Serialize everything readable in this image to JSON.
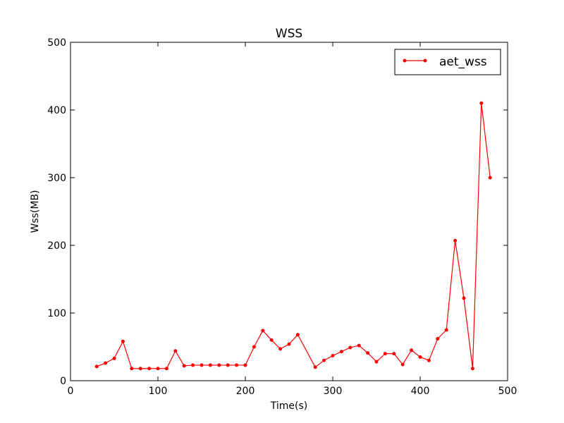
{
  "chart_data": {
    "type": "line",
    "title": "WSS",
    "xlabel": "Time(s)",
    "ylabel": "Wss(MB)",
    "xlim": [
      0,
      500
    ],
    "ylim": [
      0,
      500
    ],
    "xticks": [
      0,
      100,
      200,
      300,
      400,
      500
    ],
    "yticks": [
      0,
      100,
      200,
      300,
      400,
      500
    ],
    "grid": false,
    "legend_position": "top-right",
    "series": [
      {
        "name": "aet_wss",
        "color": "#ff0000",
        "marker": "dot",
        "x": [
          30,
          40,
          50,
          60,
          70,
          80,
          90,
          100,
          110,
          120,
          130,
          140,
          150,
          160,
          170,
          180,
          190,
          200,
          210,
          220,
          230,
          240,
          250,
          260,
          280,
          290,
          300,
          310,
          320,
          330,
          340,
          350,
          360,
          370,
          380,
          390,
          400,
          410,
          420,
          430,
          440,
          450,
          460,
          470,
          480
        ],
        "y": [
          21,
          26,
          33,
          58,
          18,
          18,
          18,
          18,
          18,
          44,
          22,
          23,
          23,
          23,
          23,
          23,
          23,
          23,
          50,
          74,
          60,
          47,
          54,
          68,
          20,
          30,
          37,
          43,
          49,
          52,
          41,
          28,
          40,
          40,
          24,
          45,
          35,
          30,
          62,
          75,
          207,
          122,
          18,
          410,
          300
        ]
      }
    ]
  }
}
